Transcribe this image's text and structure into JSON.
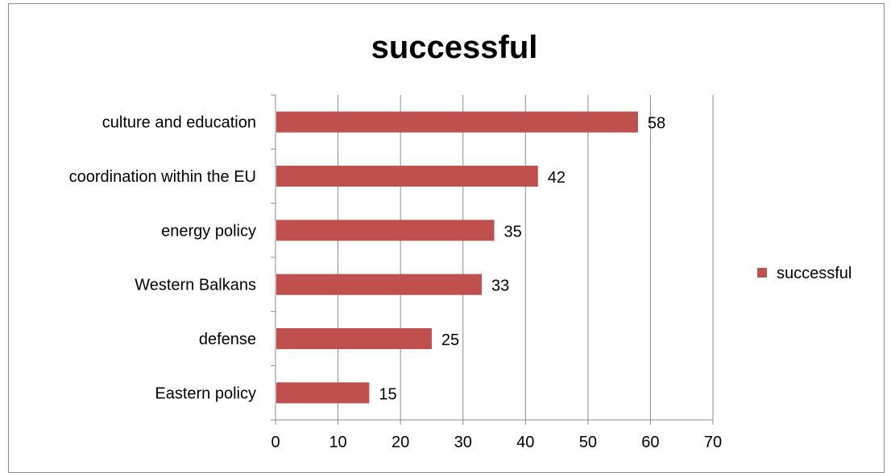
{
  "chart_data": {
    "type": "bar",
    "orientation": "horizontal",
    "title": "successful",
    "categories": [
      "culture and education",
      "coordination within the EU",
      "energy policy",
      "Western Balkans",
      "defense",
      "Eastern policy"
    ],
    "series": [
      {
        "name": "successful",
        "values": [
          58,
          42,
          35,
          33,
          25,
          15
        ],
        "color": "#c0504d"
      }
    ],
    "data_labels": [
      "58",
      "42",
      "35",
      "33",
      "25",
      "15"
    ],
    "xlim": [
      0,
      70
    ],
    "xticks": [
      "0",
      "10",
      "20",
      "30",
      "40",
      "50",
      "60",
      "70"
    ],
    "grid": true,
    "legend": "right"
  }
}
